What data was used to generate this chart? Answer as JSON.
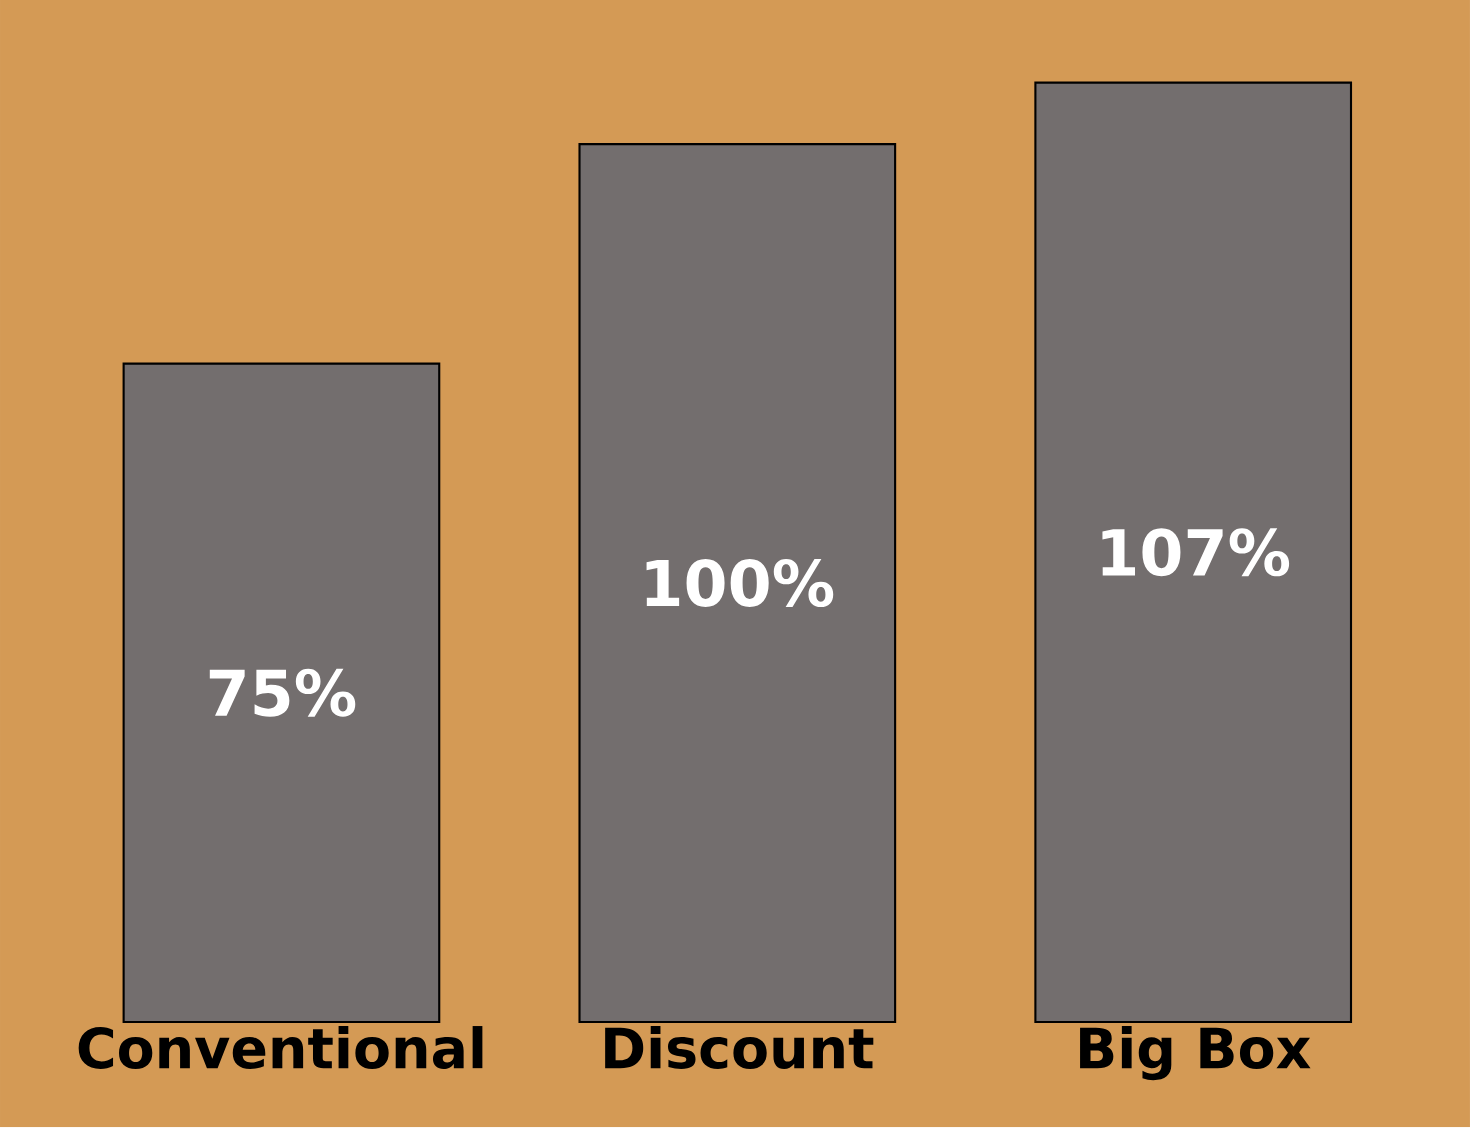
{
  "chart_data": {
    "type": "bar",
    "categories": [
      "Conventional",
      "Discount",
      "Big Box"
    ],
    "values": [
      75,
      100,
      107
    ],
    "color": "#736e6e",
    "value_labels": [
      "75%",
      "100%",
      "107%"
    ]
  }
}
